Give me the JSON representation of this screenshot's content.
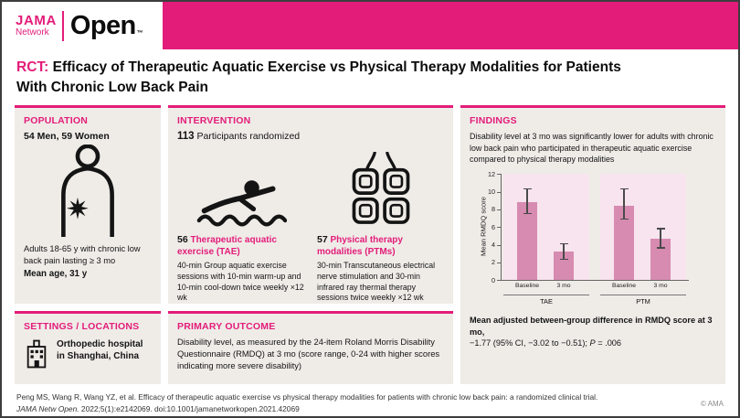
{
  "brand": {
    "accent": "#e31c79"
  },
  "header": {
    "logo": {
      "jama": "JAMA",
      "network": "Network",
      "open": "Open",
      "tm": "™"
    }
  },
  "title": {
    "prefix": "RCT:",
    "line1": "Efficacy of Therapeutic Aquatic Exercise vs Physical Therapy Modalities for Patients",
    "line2": "With Chronic Low Back Pain"
  },
  "panels": {
    "population": {
      "heading": "POPULATION",
      "counts": "54 Men, 59 Women",
      "icon": "back-pain-icon",
      "description": "Adults 18-65 y with chronic low back pain lasting ≥ 3 mo",
      "mean_age": "Mean age, 31 y"
    },
    "settings": {
      "heading": "SETTINGS / LOCATIONS",
      "icon": "hospital-icon",
      "text": "Orthopedic hospital in Shanghai, China"
    },
    "intervention": {
      "heading": "INTERVENTION",
      "randomized_n": "113",
      "randomized_label": "Participants randomized",
      "arms": [
        {
          "n": "56",
          "name": "Therapeutic aquatic exercise (TAE)",
          "icon": "swimmer-icon",
          "description": "40-min Group aquatic exercise sessions with 10-min warm-up and 10-min cool-down twice weekly ×12 wk"
        },
        {
          "n": "57",
          "name": "Physical therapy modalities (PTMs)",
          "icon": "tens-electrodes-icon",
          "description": "30-min Transcutaneous electrical nerve stimulation and 30-min infrared ray thermal therapy sessions twice weekly ×12 wk"
        }
      ]
    },
    "primary_outcome": {
      "heading": "PRIMARY OUTCOME",
      "text": "Disability level, as measured by the 24-item Roland Morris Disability Questionnaire (RMDQ) at 3 mo (score range, 0-24 with higher scores indicating more severe disability)"
    },
    "findings": {
      "heading": "FINDINGS",
      "summary": "Disability level at 3 mo was significantly lower for adults with chronic low back pain who participated in therapeutic aquatic exercise compared to physical therapy modalities",
      "result_bold": "Mean adjusted between-group difference in RMDQ score at 3 mo,",
      "result_value": "−1.77 (95% CI, −3.02 to −0.51); ",
      "p_italic": "P",
      "p_rest": " = .006"
    }
  },
  "chart_data": {
    "type": "bar",
    "ylabel": "Mean RMDQ score",
    "ylim": [
      0,
      12
    ],
    "yticks": [
      0,
      2,
      4,
      6,
      8,
      10,
      12
    ],
    "categories": [
      "Baseline",
      "3 mo"
    ],
    "groups": [
      {
        "label": "TAE",
        "values": [
          8.8,
          3.2
        ],
        "ci_low": [
          7.5,
          2.3
        ],
        "ci_high": [
          10.4,
          4.2
        ]
      },
      {
        "label": "PTM",
        "values": [
          8.4,
          4.7
        ],
        "ci_low": [
          6.9,
          3.6
        ],
        "ci_high": [
          10.4,
          5.9
        ]
      }
    ],
    "bar_color": "#d78bb1",
    "panel_color": "#f7e4ee",
    "grid": false,
    "legend": "none"
  },
  "footer": {
    "citation_line1": "Peng MS, Wang R, Wang YZ, et al. Efficacy of therapeutic aquatic exercise vs physical therapy modalities for patients with chronic low back pain: a randomized clinical trial.",
    "citation_line2_italic": "JAMA Netw Open.",
    "citation_line2_rest": " 2022;5(1):e2142069. doi:10.1001/jamanetworkopen.2021.42069",
    "copyright": "© AMA"
  }
}
